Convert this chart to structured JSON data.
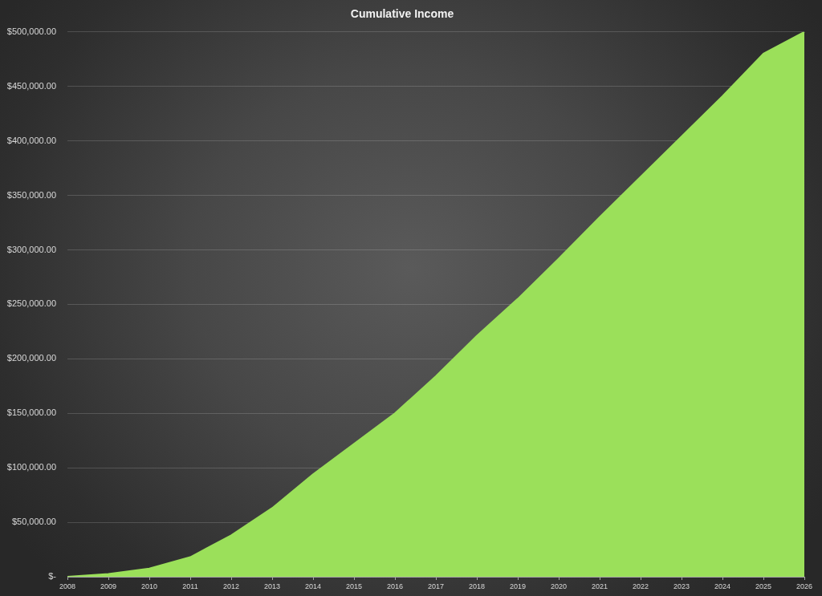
{
  "chart_data": {
    "type": "area",
    "title": "Cumulative Income",
    "categories": [
      "2008",
      "2009",
      "2010",
      "2011",
      "2012",
      "2013",
      "2014",
      "2015",
      "2016",
      "2017",
      "2018",
      "2019",
      "2020",
      "2021",
      "2022",
      "2023",
      "2024",
      "2025",
      "2026"
    ],
    "values": [
      0,
      2500,
      7500,
      18000,
      38000,
      63000,
      94000,
      122000,
      150000,
      184000,
      221000,
      255000,
      292000,
      330000,
      367000,
      404000,
      441000,
      480000,
      500000
    ],
    "color": "#9be05a",
    "ylim": [
      0,
      500000
    ],
    "yticks": [
      {
        "value": 0,
        "label": "$-"
      },
      {
        "value": 50000,
        "label": "$50,000.00"
      },
      {
        "value": 100000,
        "label": "$100,000.00"
      },
      {
        "value": 150000,
        "label": "$150,000.00"
      },
      {
        "value": 200000,
        "label": "$200,000.00"
      },
      {
        "value": 250000,
        "label": "$250,000.00"
      },
      {
        "value": 300000,
        "label": "$300,000.00"
      },
      {
        "value": 350000,
        "label": "$350,000.00"
      },
      {
        "value": 400000,
        "label": "$400,000.00"
      },
      {
        "value": 450000,
        "label": "$450,000.00"
      },
      {
        "value": 500000,
        "label": "$500,000.00"
      }
    ],
    "grid": "y"
  }
}
